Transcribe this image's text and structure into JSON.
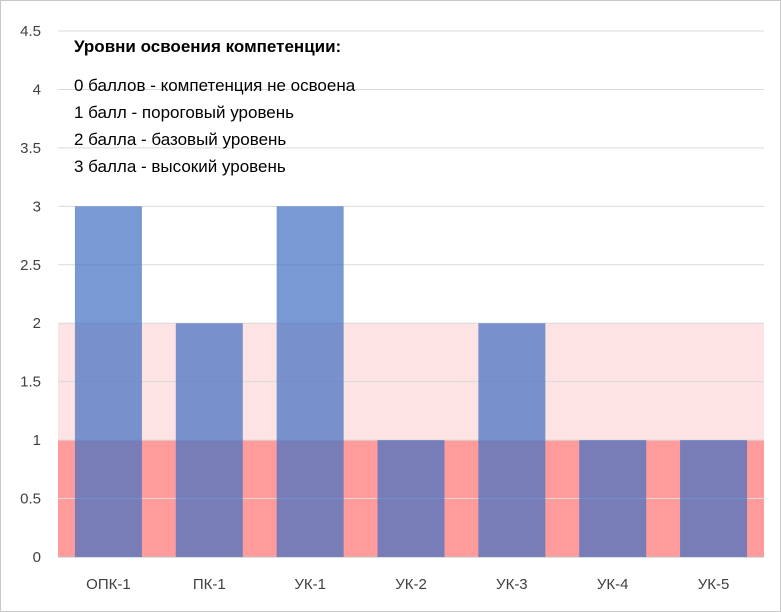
{
  "chart_data": {
    "type": "bar",
    "categories": [
      "ОПК-1",
      "ПК-1",
      "УК-1",
      "УК-2",
      "УК-3",
      "УК-4",
      "УК-5"
    ],
    "values": [
      3,
      2,
      3,
      1,
      2,
      1,
      1
    ],
    "ylim": [
      0,
      4.5
    ],
    "yticks": [
      "0",
      "0.5",
      "1",
      "1.5",
      "2",
      "2.5",
      "3",
      "3.5",
      "4",
      "4.5"
    ],
    "grid": true,
    "bands": [
      {
        "from": 0,
        "to": 1,
        "color": "#ff9b9b"
      },
      {
        "from": 1,
        "to": 2,
        "color": "#fde3e3"
      }
    ],
    "bar_color": "#4472c4",
    "bar_opacity": 0.72,
    "legend": {
      "title": "Уровни освоения компетенции:",
      "lines": [
        "0 баллов - компетенция не освоена",
        "1 балл - пороговый уровень",
        "2 балла - базовый уровень",
        "3 балла - высокий уровень"
      ]
    }
  }
}
